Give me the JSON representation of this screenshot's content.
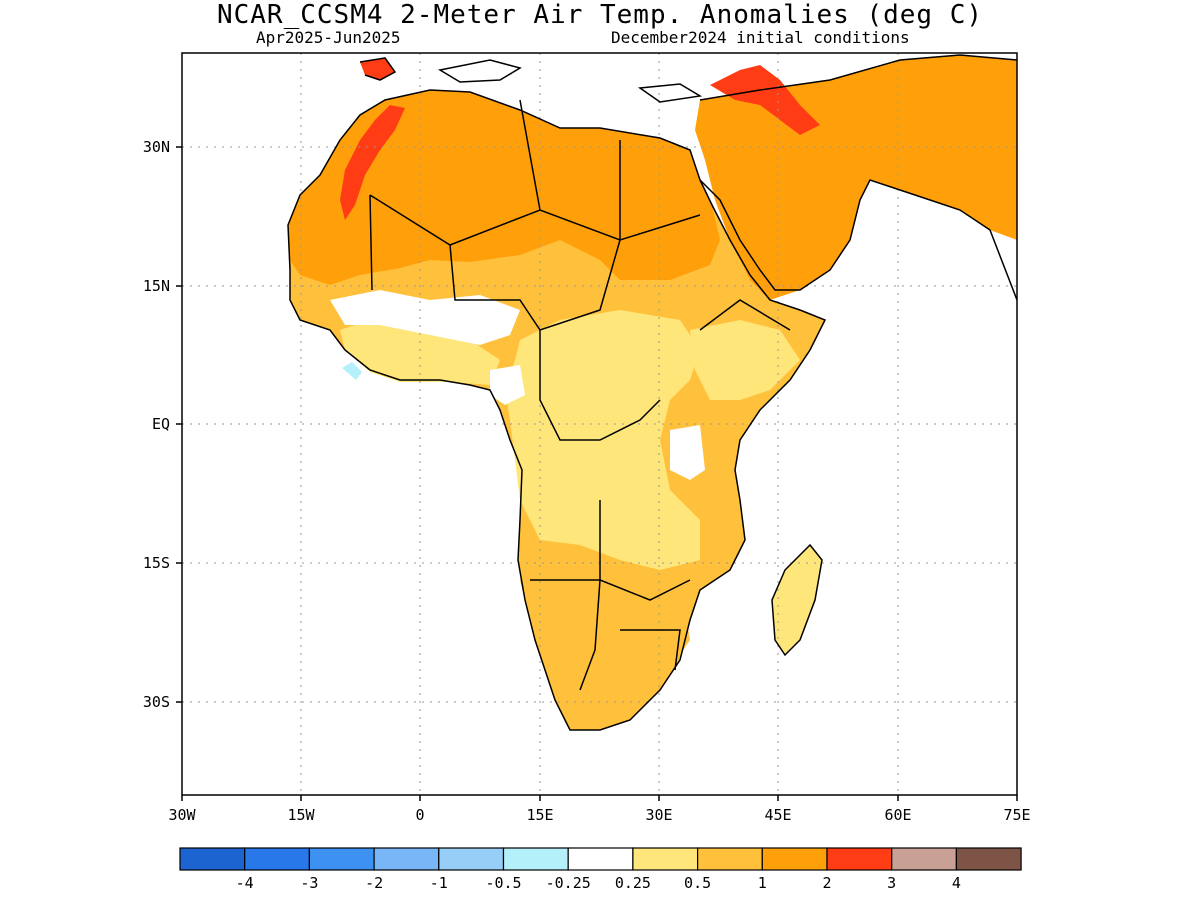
{
  "title": "NCAR_CCSM4 2-Meter Air Temp. Anomalies (deg C)",
  "subtitle_left": "Apr2025-Jun2025",
  "subtitle_right": "December2024 initial conditions",
  "lat_labels": [
    "30N",
    "15N",
    "EQ",
    "15S",
    "30S"
  ],
  "lon_labels": [
    "30W",
    "15W",
    "0",
    "15E",
    "30E",
    "45E",
    "60E",
    "75E"
  ],
  "colorbar": {
    "colors": [
      "#1c64d0",
      "#2878ea",
      "#3d91f0",
      "#78b6f8",
      "#96cef8",
      "#b4f0fa",
      "#ffffff",
      "#ffe67a",
      "#ffc03c",
      "#ffa00a",
      "#ff3c14",
      "#c8a096",
      "#7e5446"
    ],
    "labels": [
      "-4",
      "-3",
      "-2",
      "-1",
      "-0.5",
      "-0.25",
      "0.25",
      "0.5",
      "1",
      "2",
      "3",
      "4"
    ]
  },
  "anomaly_colors": {
    "band_025_05": "#ffe67a",
    "band_05_1": "#ffc03c",
    "band_1_2": "#ffa00a",
    "band_2_3": "#ff3c14",
    "band_neg": "#b4f0fa"
  }
}
